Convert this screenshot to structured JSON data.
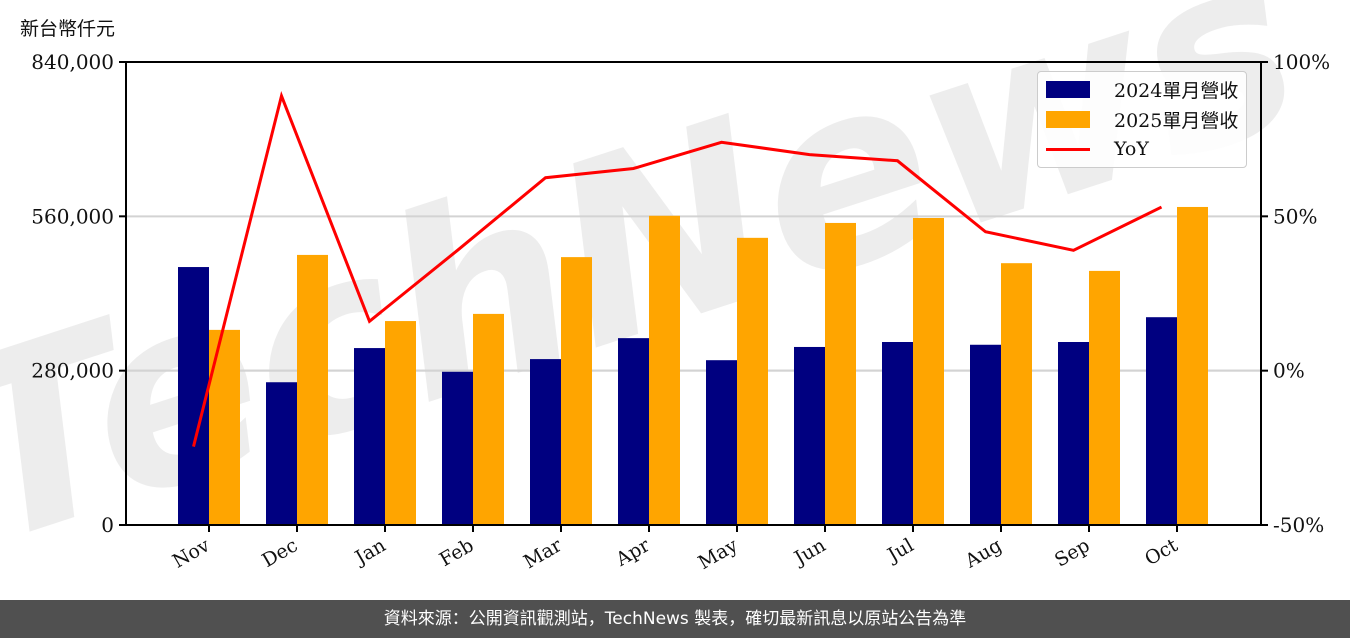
{
  "unit_label": "新台幣仟元",
  "footer": {
    "source_text": "資料來源：公開資訊觀測站，TechNews 製表，確切最新訊息以原站公告為準"
  },
  "legend": {
    "items": [
      {
        "label": "2024單月營收",
        "color": "#000080",
        "kind": "bar"
      },
      {
        "label": "2025單月營收",
        "color": "#FFA500",
        "kind": "bar"
      },
      {
        "label": "YoY",
        "color": "#FF0000",
        "kind": "line"
      }
    ]
  },
  "watermark": "TechNews",
  "chart_data": {
    "type": "bar",
    "title": "",
    "xlabel": "",
    "ylabel": "新台幣仟元",
    "categories": [
      "Nov",
      "Dec",
      "Jan",
      "Feb",
      "Mar",
      "Apr",
      "May",
      "Jun",
      "Jul",
      "Aug",
      "Sep",
      "Oct"
    ],
    "series": [
      {
        "name": "2024單月營收",
        "type": "bar",
        "axis": "left",
        "color": "#000080",
        "values": [
          468000,
          259000,
          321000,
          278000,
          301000,
          339000,
          299000,
          323000,
          332000,
          327000,
          332000,
          377000
        ]
      },
      {
        "name": "2025單月營收",
        "type": "bar",
        "axis": "left",
        "color": "#FFA500",
        "values": [
          354000,
          490000,
          370000,
          383000,
          486000,
          561000,
          521000,
          548000,
          557000,
          475000,
          461000,
          577000
        ]
      },
      {
        "name": "YoY",
        "type": "line",
        "axis": "right",
        "color": "#FF0000",
        "values": [
          -24.6,
          89.0,
          16.0,
          39.0,
          62.5,
          65.5,
          74.0,
          70.0,
          68.0,
          45.0,
          39.0,
          53.0
        ]
      }
    ],
    "ylim": [
      0,
      840000
    ],
    "y_ticks": [
      "0",
      "280,000",
      "560,000",
      "840,000"
    ],
    "y2lim": [
      -50,
      100
    ],
    "y2_ticks": [
      "-50%",
      "0%",
      "50%",
      "100%"
    ],
    "grid": "horizontal",
    "legend_position": "upper right"
  }
}
